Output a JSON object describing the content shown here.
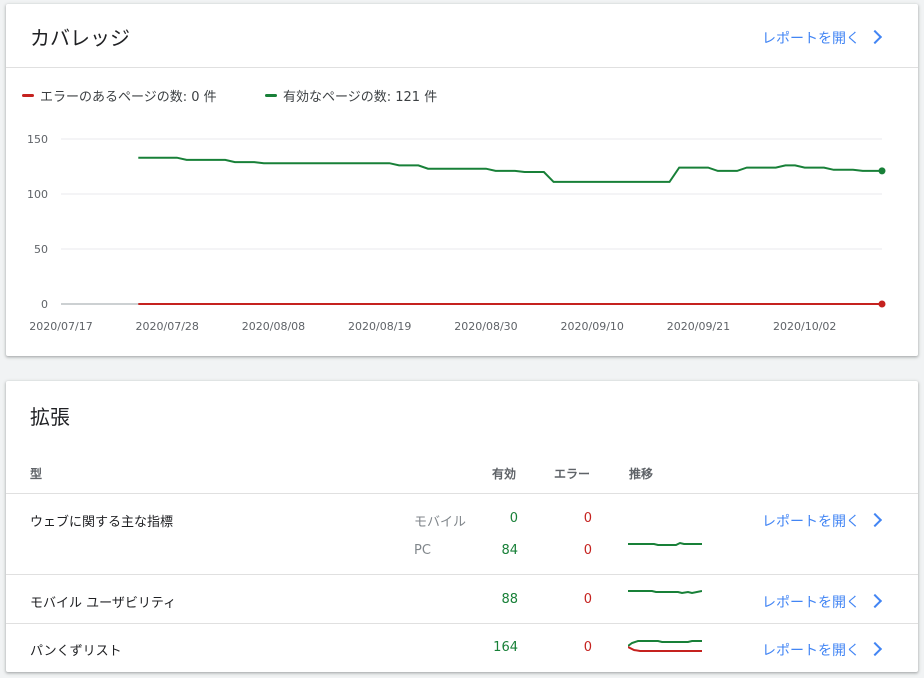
{
  "coverage": {
    "title": "カバレッジ",
    "open_report": "レポートを開く",
    "legend": {
      "error_label": "エラーのあるページの数: 0 件",
      "valid_label": "有効なページの数: 121 件"
    }
  },
  "chart_data": {
    "type": "line",
    "yticks": [
      0,
      50,
      100,
      150
    ],
    "ylim": [
      0,
      150
    ],
    "xticks": [
      "2020/07/17",
      "2020/07/28",
      "2020/08/08",
      "2020/08/19",
      "2020/08/30",
      "2020/09/10",
      "2020/09/21",
      "2020/10/02"
    ],
    "xlim": [
      "2020/07/17",
      "2020/10/10"
    ],
    "x": [
      "2020/07/25",
      "2020/07/29",
      "2020/07/30",
      "2020/08/03",
      "2020/08/04",
      "2020/08/06",
      "2020/08/07",
      "2020/08/10",
      "2020/08/11",
      "2020/08/20",
      "2020/08/21",
      "2020/08/23",
      "2020/08/24",
      "2020/08/30",
      "2020/08/31",
      "2020/09/02",
      "2020/09/03",
      "2020/09/05",
      "2020/09/06",
      "2020/09/18",
      "2020/09/19",
      "2020/09/22",
      "2020/09/23",
      "2020/09/25",
      "2020/09/26",
      "2020/09/29",
      "2020/09/30",
      "2020/10/01",
      "2020/10/02",
      "2020/10/04",
      "2020/10/05",
      "2020/10/07",
      "2020/10/08",
      "2020/10/10"
    ],
    "series": [
      {
        "name": "エラーのあるページの数: 0 件",
        "color": "#c5221f",
        "values": [
          0,
          0,
          0,
          0,
          0,
          0,
          0,
          0,
          0,
          0,
          0,
          0,
          0,
          0,
          0,
          0,
          0,
          0,
          0,
          0,
          0,
          0,
          0,
          0,
          0,
          0,
          0,
          0,
          0,
          0,
          0,
          0,
          0,
          0
        ]
      },
      {
        "name": "有効なページの数: 121 件",
        "color": "#188038",
        "values": [
          133,
          133,
          131,
          131,
          129,
          129,
          128,
          128,
          128,
          128,
          126,
          126,
          123,
          123,
          121,
          121,
          120,
          120,
          111,
          111,
          124,
          124,
          121,
          121,
          124,
          124,
          126,
          126,
          124,
          124,
          122,
          122,
          121,
          121
        ]
      }
    ]
  },
  "enhancements": {
    "title": "拡張",
    "headers": {
      "type": "型",
      "valid": "有効",
      "error": "エラー",
      "trend": "推移"
    },
    "open_report": "レポートを開く",
    "rows": [
      {
        "name": "ウェブに関する主な指標",
        "sub1": "モバイル",
        "valid1": "0",
        "error1": "0",
        "sub2": "PC",
        "valid2": "84",
        "error2": "0"
      },
      {
        "name": "モバイル ユーザビリティ",
        "valid": "88",
        "error": "0"
      },
      {
        "name": "パンくずリスト",
        "valid": "164",
        "error": "0"
      }
    ]
  },
  "colors": {
    "accent": "#4285f4",
    "valid": "#188038",
    "error": "#c5221f"
  }
}
